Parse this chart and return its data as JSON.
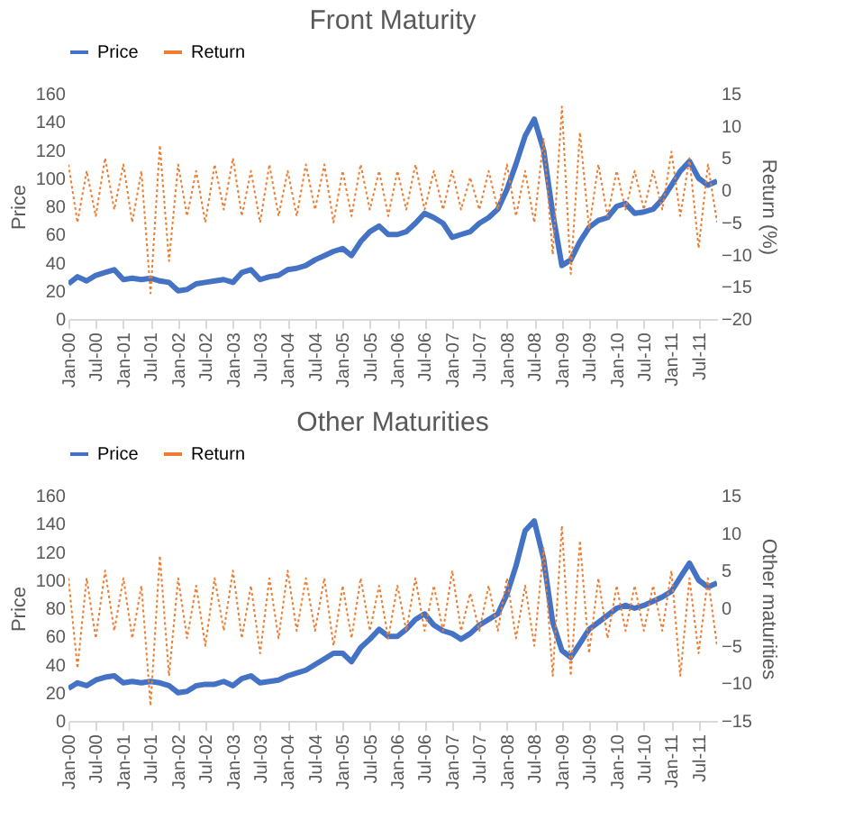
{
  "chart_data": [
    {
      "type": "line",
      "title": "Front Maturity",
      "ylabel": "Price",
      "y2label": "Return (%)",
      "x": [
        "2000-01",
        "2000-03",
        "2000-05",
        "2000-07",
        "2000-09",
        "2000-11",
        "2001-01",
        "2001-03",
        "2001-05",
        "2001-07",
        "2001-09",
        "2001-11",
        "2002-01",
        "2002-03",
        "2002-05",
        "2002-07",
        "2002-09",
        "2002-11",
        "2003-01",
        "2003-03",
        "2003-05",
        "2003-07",
        "2003-09",
        "2003-11",
        "2004-01",
        "2004-03",
        "2004-05",
        "2004-07",
        "2004-09",
        "2004-11",
        "2005-01",
        "2005-03",
        "2005-05",
        "2005-07",
        "2005-09",
        "2005-11",
        "2006-01",
        "2006-03",
        "2006-05",
        "2006-07",
        "2006-09",
        "2006-11",
        "2007-01",
        "2007-03",
        "2007-05",
        "2007-07",
        "2007-09",
        "2007-11",
        "2008-01",
        "2008-03",
        "2008-05",
        "2008-07",
        "2008-09",
        "2008-11",
        "2009-01",
        "2009-03",
        "2009-05",
        "2009-07",
        "2009-09",
        "2009-11",
        "2010-01",
        "2010-03",
        "2010-05",
        "2010-07",
        "2010-09",
        "2010-11",
        "2011-01",
        "2011-03",
        "2011-05",
        "2011-07",
        "2011-09",
        "2011-11"
      ],
      "series": [
        {
          "name": "Price",
          "color": "#4472c4",
          "line_style": "solid",
          "values": [
            25,
            30,
            27,
            31,
            33,
            35,
            28,
            29,
            28,
            29,
            27,
            26,
            20,
            21,
            25,
            26,
            27,
            28,
            26,
            33,
            35,
            28,
            30,
            31,
            35,
            36,
            38,
            42,
            45,
            48,
            50,
            45,
            55,
            62,
            66,
            60,
            60,
            62,
            68,
            75,
            72,
            68,
            58,
            60,
            62,
            68,
            72,
            78,
            92,
            110,
            130,
            142,
            120,
            75,
            38,
            42,
            55,
            65,
            70,
            72,
            80,
            82,
            75,
            76,
            78,
            85,
            95,
            105,
            112,
            100,
            95,
            98
          ]
        },
        {
          "name": "Return",
          "color": "#ed7d31",
          "line_style": "dotted",
          "axis": "y2",
          "values": [
            4,
            -5,
            3,
            -4,
            5,
            -3,
            4,
            -5,
            3,
            -16,
            7,
            -11,
            4,
            -4,
            3,
            -5,
            4,
            -3,
            5,
            -4,
            3,
            -5,
            4,
            -4,
            3,
            -4,
            4,
            -3,
            4,
            -5,
            3,
            -4,
            4,
            -3,
            3,
            -4,
            3,
            -3,
            4,
            -3,
            3,
            -3,
            3,
            -3,
            2,
            -3,
            3,
            -3,
            4,
            -4,
            3,
            -5,
            8,
            -10,
            13,
            -13,
            9,
            -6,
            4,
            -4,
            3,
            -3,
            3,
            -3,
            3,
            -3,
            6,
            -4,
            5,
            -9,
            4,
            -5
          ]
        }
      ],
      "xlim": [
        "2000-01",
        "2011-11"
      ],
      "xticks": [
        {
          "value": "2000-01",
          "label": "Jan-00"
        },
        {
          "value": "2000-07",
          "label": "Jul-00"
        },
        {
          "value": "2001-01",
          "label": "Jan-01"
        },
        {
          "value": "2001-07",
          "label": "Jul-01"
        },
        {
          "value": "2002-01",
          "label": "Jan-02"
        },
        {
          "value": "2002-07",
          "label": "Jul-02"
        },
        {
          "value": "2003-01",
          "label": "Jan-03"
        },
        {
          "value": "2003-07",
          "label": "Jul-03"
        },
        {
          "value": "2004-01",
          "label": "Jan-04"
        },
        {
          "value": "2004-07",
          "label": "Jul-04"
        },
        {
          "value": "2005-01",
          "label": "Jan-05"
        },
        {
          "value": "2005-07",
          "label": "Jul-05"
        },
        {
          "value": "2006-01",
          "label": "Jan-06"
        },
        {
          "value": "2006-07",
          "label": "Jul-06"
        },
        {
          "value": "2007-01",
          "label": "Jan-07"
        },
        {
          "value": "2007-07",
          "label": "Jul-07"
        },
        {
          "value": "2008-01",
          "label": "Jan-08"
        },
        {
          "value": "2008-07",
          "label": "Jul-08"
        },
        {
          "value": "2009-01",
          "label": "Jan-09"
        },
        {
          "value": "2009-07",
          "label": "Jul-09"
        },
        {
          "value": "2010-01",
          "label": "Jan-10"
        },
        {
          "value": "2010-07",
          "label": "Jul-10"
        },
        {
          "value": "2011-01",
          "label": "Jan-11"
        },
        {
          "value": "2011-07",
          "label": "Jul-11"
        }
      ],
      "ylim": [
        0,
        160
      ],
      "yticks": [
        0,
        20,
        40,
        60,
        80,
        100,
        120,
        140,
        160
      ],
      "y2lim": [
        -20,
        15
      ],
      "y2ticks": [
        -20,
        -15,
        -10,
        -5,
        0,
        5,
        10,
        15
      ],
      "grid": false,
      "legend": "top"
    },
    {
      "type": "line",
      "title": "Other Maturities",
      "ylabel": "Price",
      "y2label": "Other maturities",
      "x": [
        "2000-01",
        "2000-03",
        "2000-05",
        "2000-07",
        "2000-09",
        "2000-11",
        "2001-01",
        "2001-03",
        "2001-05",
        "2001-07",
        "2001-09",
        "2001-11",
        "2002-01",
        "2002-03",
        "2002-05",
        "2002-07",
        "2002-09",
        "2002-11",
        "2003-01",
        "2003-03",
        "2003-05",
        "2003-07",
        "2003-09",
        "2003-11",
        "2004-01",
        "2004-03",
        "2004-05",
        "2004-07",
        "2004-09",
        "2004-11",
        "2005-01",
        "2005-03",
        "2005-05",
        "2005-07",
        "2005-09",
        "2005-11",
        "2006-01",
        "2006-03",
        "2006-05",
        "2006-07",
        "2006-09",
        "2006-11",
        "2007-01",
        "2007-03",
        "2007-05",
        "2007-07",
        "2007-09",
        "2007-11",
        "2008-01",
        "2008-03",
        "2008-05",
        "2008-07",
        "2008-09",
        "2008-11",
        "2009-01",
        "2009-03",
        "2009-05",
        "2009-07",
        "2009-09",
        "2009-11",
        "2010-01",
        "2010-03",
        "2010-05",
        "2010-07",
        "2010-09",
        "2010-11",
        "2011-01",
        "2011-03",
        "2011-05",
        "2011-07",
        "2011-09",
        "2011-11"
      ],
      "series": [
        {
          "name": "Price",
          "color": "#4472c4",
          "line_style": "solid",
          "values": [
            23,
            27,
            25,
            29,
            31,
            32,
            27,
            28,
            27,
            28,
            27,
            25,
            20,
            21,
            25,
            26,
            26,
            28,
            25,
            30,
            32,
            27,
            28,
            29,
            32,
            34,
            36,
            40,
            44,
            48,
            48,
            42,
            52,
            58,
            65,
            60,
            60,
            65,
            72,
            76,
            68,
            64,
            62,
            58,
            62,
            68,
            72,
            76,
            90,
            110,
            135,
            142,
            115,
            70,
            50,
            45,
            55,
            65,
            70,
            75,
            80,
            82,
            80,
            82,
            85,
            88,
            92,
            102,
            112,
            100,
            95,
            98
          ]
        },
        {
          "name": "Return",
          "color": "#ed7d31",
          "line_style": "dotted",
          "axis": "y2",
          "values": [
            4,
            -8,
            4,
            -4,
            5,
            -3,
            4,
            -4,
            3,
            -13,
            7,
            -9,
            4,
            -4,
            3,
            -5,
            4,
            -3,
            5,
            -4,
            3,
            -6,
            4,
            -4,
            5,
            -3,
            4,
            -3,
            4,
            -5,
            3,
            -4,
            4,
            -3,
            3,
            -4,
            3,
            -3,
            4,
            -3,
            3,
            -3,
            5,
            -3,
            2,
            -3,
            3,
            -3,
            4,
            -4,
            3,
            -5,
            8,
            -9,
            11,
            -9,
            9,
            -6,
            4,
            -4,
            3,
            -3,
            3,
            -3,
            3,
            -3,
            5,
            -9,
            4,
            -6,
            4,
            -5
          ]
        }
      ],
      "xlim": [
        "2000-01",
        "2011-11"
      ],
      "xticks": [
        {
          "value": "2000-01",
          "label": "Jan-00"
        },
        {
          "value": "2000-07",
          "label": "Jul-00"
        },
        {
          "value": "2001-01",
          "label": "Jan-01"
        },
        {
          "value": "2001-07",
          "label": "Jul-01"
        },
        {
          "value": "2002-01",
          "label": "Jan-02"
        },
        {
          "value": "2002-07",
          "label": "Jul-02"
        },
        {
          "value": "2003-01",
          "label": "Jan-03"
        },
        {
          "value": "2003-07",
          "label": "Jul-03"
        },
        {
          "value": "2004-01",
          "label": "Jan-04"
        },
        {
          "value": "2004-07",
          "label": "Jul-04"
        },
        {
          "value": "2005-01",
          "label": "Jan-05"
        },
        {
          "value": "2005-07",
          "label": "Jul-05"
        },
        {
          "value": "2006-01",
          "label": "Jan-06"
        },
        {
          "value": "2006-07",
          "label": "Jul-06"
        },
        {
          "value": "2007-01",
          "label": "Jan-07"
        },
        {
          "value": "2007-07",
          "label": "Jul-07"
        },
        {
          "value": "2008-01",
          "label": "Jan-08"
        },
        {
          "value": "2008-07",
          "label": "Jul-08"
        },
        {
          "value": "2009-01",
          "label": "Jan-09"
        },
        {
          "value": "2009-07",
          "label": "Jul-09"
        },
        {
          "value": "2010-01",
          "label": "Jan-10"
        },
        {
          "value": "2010-07",
          "label": "Jul-10"
        },
        {
          "value": "2011-01",
          "label": "Jan-11"
        },
        {
          "value": "2011-07",
          "label": "Jul-11"
        }
      ],
      "ylim": [
        0,
        160
      ],
      "yticks": [
        0,
        20,
        40,
        60,
        80,
        100,
        120,
        140,
        160
      ],
      "y2lim": [
        -15,
        15
      ],
      "y2ticks": [
        -15,
        -10,
        -5,
        0,
        5,
        10,
        15
      ],
      "grid": false,
      "legend": "top"
    }
  ]
}
